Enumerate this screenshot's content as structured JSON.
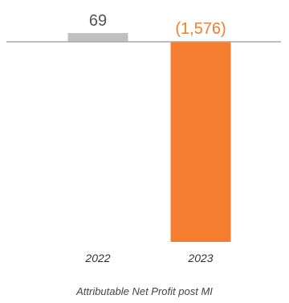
{
  "chart_data": {
    "type": "bar",
    "categories": [
      "2022",
      "2023"
    ],
    "values": [
      69,
      -1576
    ],
    "value_labels": [
      "69",
      "(1,576)"
    ],
    "caption": "Attributable Net Profit post MI",
    "grid": false,
    "legend": "none"
  },
  "colors": {
    "bar_positive": "#c0c0c0",
    "bar_negative": "#f47d30",
    "label_positive": "#555555",
    "label_negative": "#f47d30",
    "baseline": "#a8a8a8"
  }
}
